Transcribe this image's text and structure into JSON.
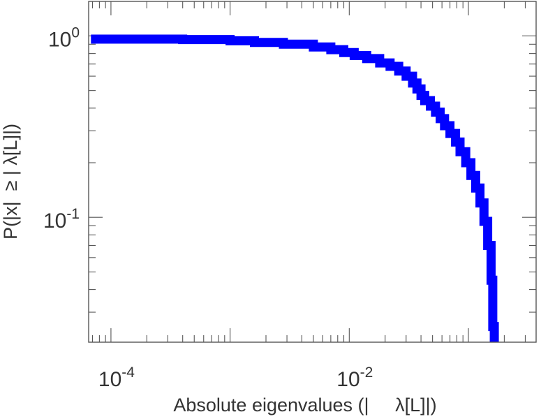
{
  "chart_data": {
    "type": "line",
    "xlabel": "Absolute eigenvalues (|     λ[L]|)",
    "ylabel": "P(|x|  ≥ | λ[L]|)",
    "x_scale": "log",
    "y_scale": "log",
    "xlim": [
      6.5e-05,
      0.37
    ],
    "ylim": [
      0.0205,
      1.55
    ],
    "grid": false,
    "x_ticks": [
      {
        "base": "10",
        "exp": "-4",
        "value": 0.0001
      },
      {
        "base": "10",
        "exp": "-2",
        "value": 0.01
      }
    ],
    "y_ticks": [
      {
        "base": "10",
        "exp": "0",
        "value": 1
      },
      {
        "base": "10",
        "exp": "-1",
        "value": 0.1
      }
    ],
    "series": [
      {
        "color": "#0000ff",
        "style": "step",
        "x": [
          6.8e-05,
          0.0004,
          0.001,
          0.0016,
          0.0028,
          0.005,
          0.007,
          0.009,
          0.011,
          0.014,
          0.018,
          0.022,
          0.026,
          0.03,
          0.034,
          0.037,
          0.04,
          0.043,
          0.048,
          0.053,
          0.058,
          0.063,
          0.07,
          0.078,
          0.085,
          0.095,
          0.105,
          0.115,
          0.125,
          0.135,
          0.145,
          0.155,
          0.16,
          0.165
        ],
        "y": [
          0.96,
          0.955,
          0.94,
          0.92,
          0.9,
          0.87,
          0.84,
          0.81,
          0.78,
          0.75,
          0.71,
          0.68,
          0.64,
          0.6,
          0.55,
          0.51,
          0.47,
          0.44,
          0.41,
          0.38,
          0.35,
          0.32,
          0.29,
          0.26,
          0.23,
          0.2,
          0.17,
          0.145,
          0.12,
          0.095,
          0.07,
          0.045,
          0.025,
          0.0205
        ]
      }
    ]
  }
}
